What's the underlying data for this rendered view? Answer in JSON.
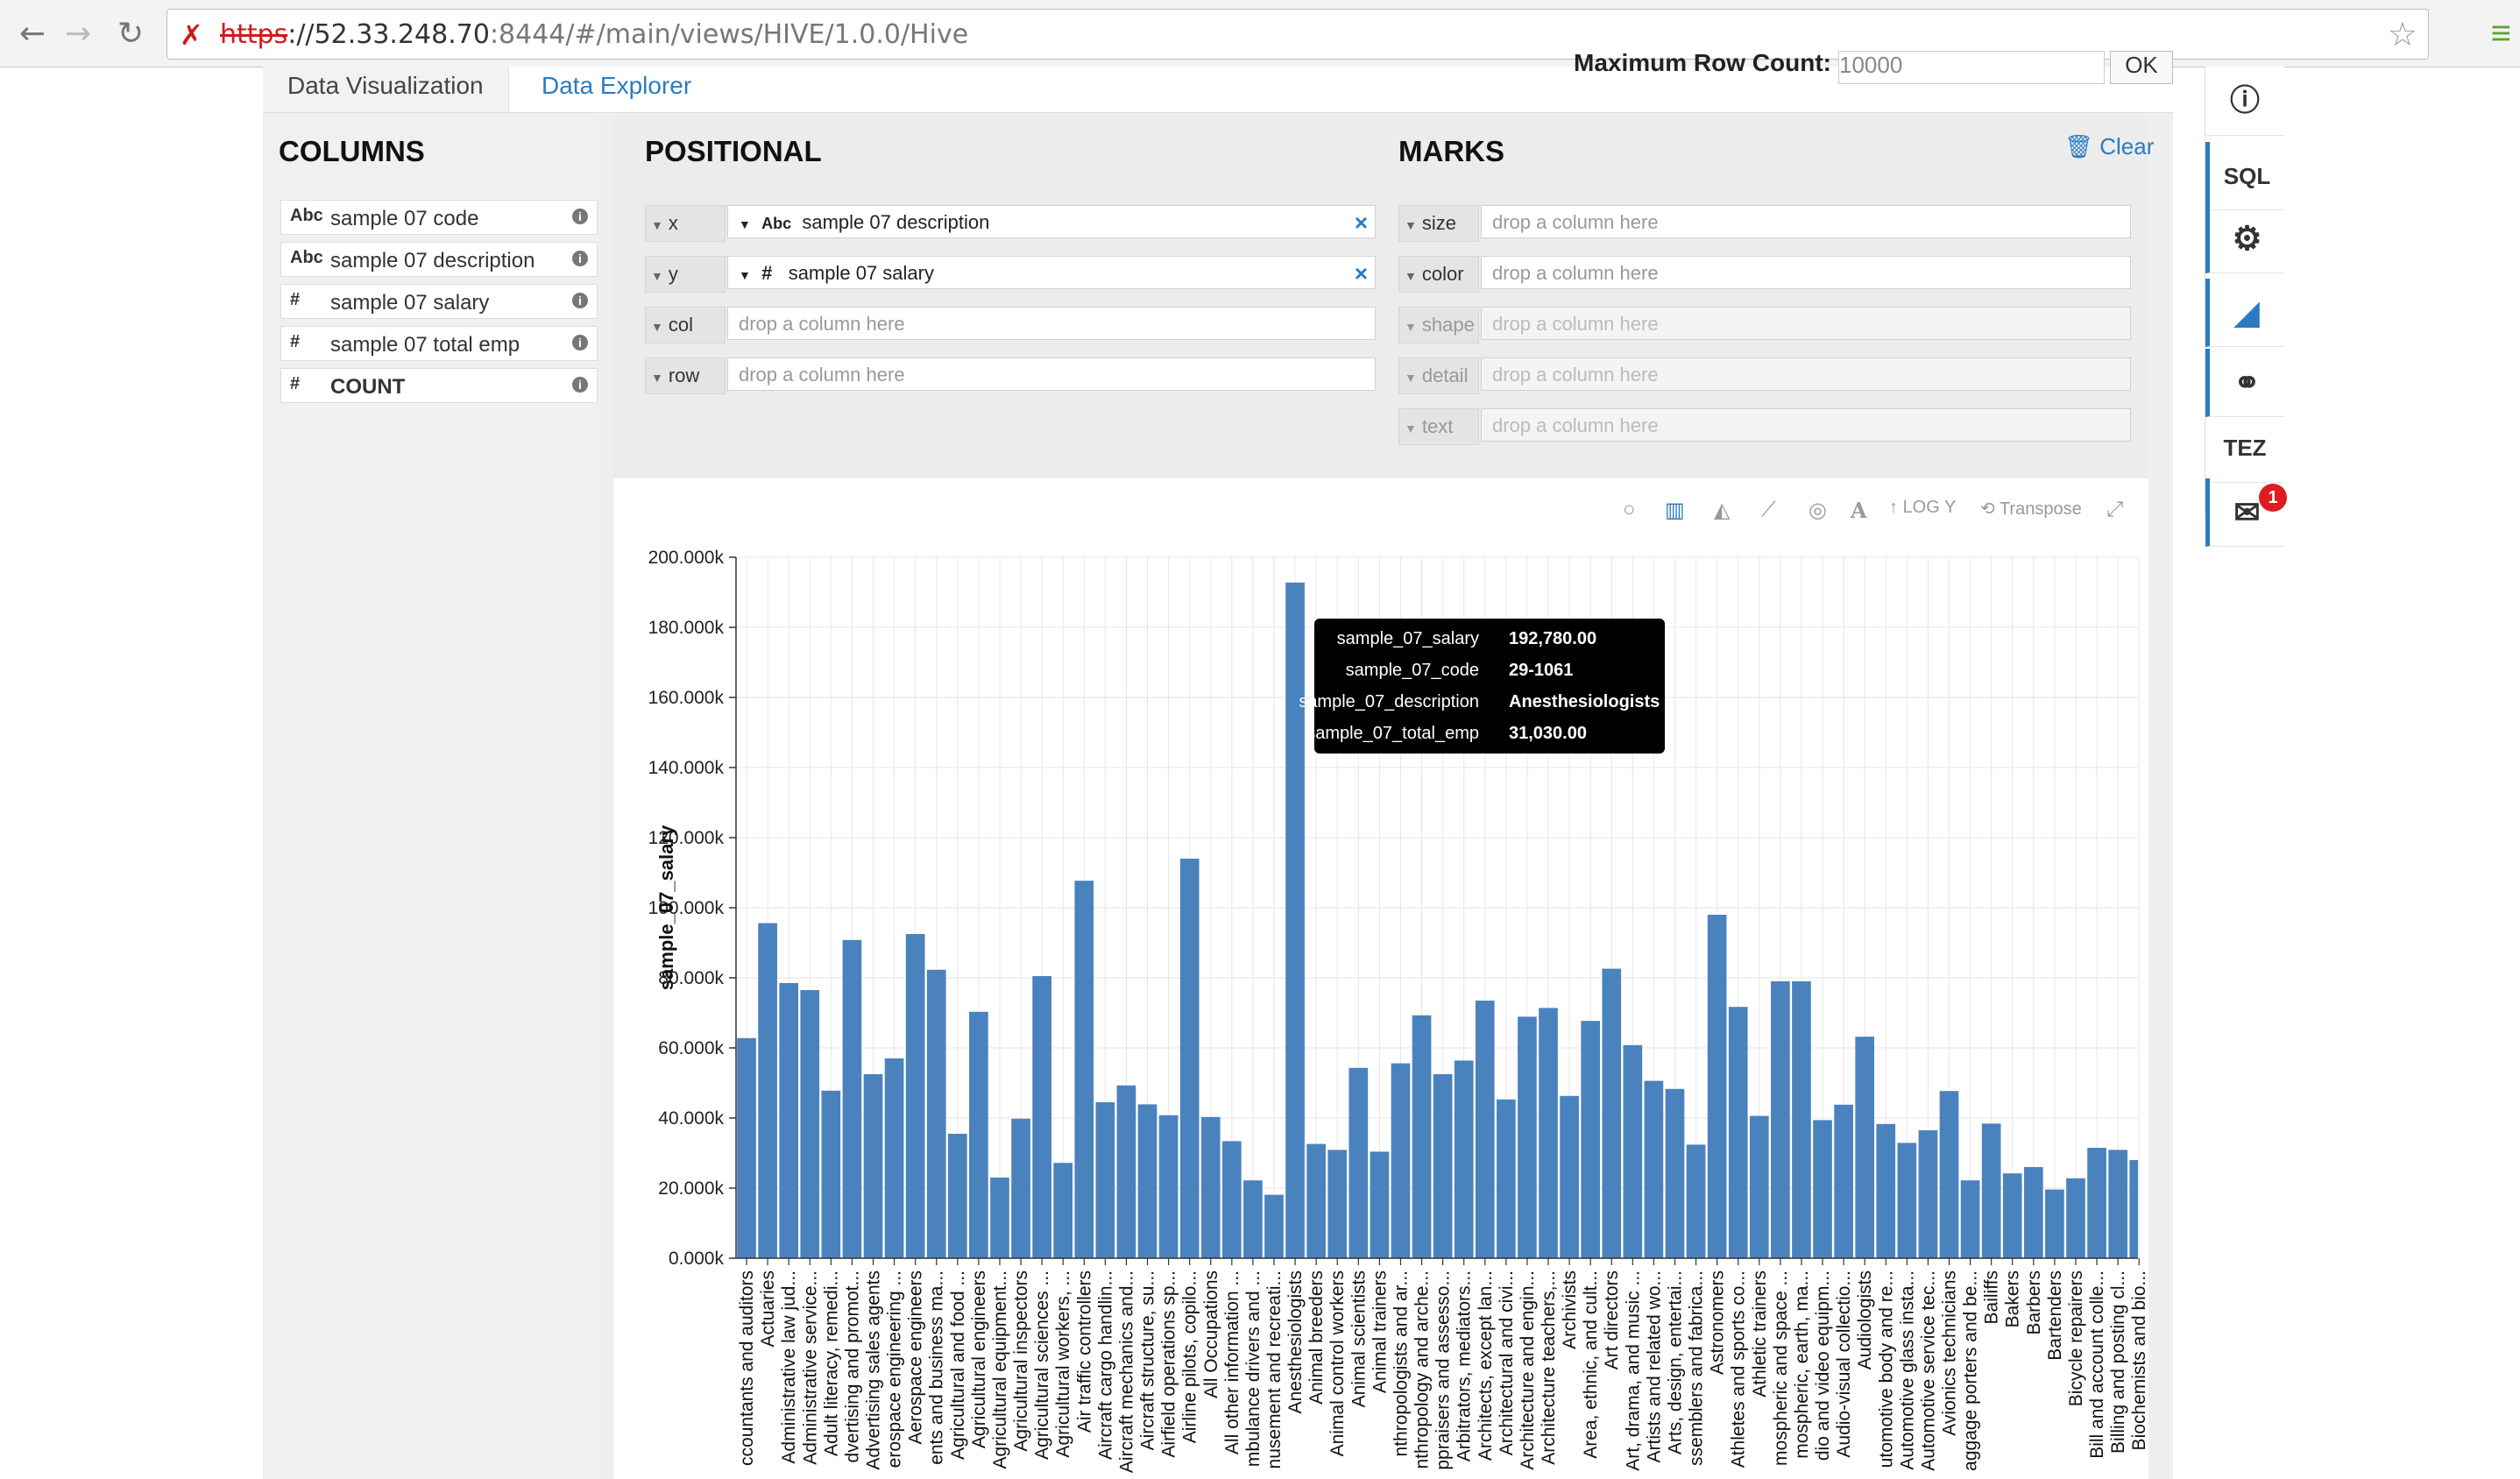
{
  "browser": {
    "url_scheme": "https",
    "url_host": "://52.33.248.70",
    "url_rest": ":8444/#/main/views/HIVE/1.0.0/Hive"
  },
  "tabs": [
    {
      "label": "Data Visualization"
    },
    {
      "label": "Data Explorer"
    }
  ],
  "max_row": {
    "label": "Maximum Row Count:",
    "value": "10000",
    "ok": "OK"
  },
  "columns": {
    "title": "COLUMNS",
    "items": [
      {
        "type": "Abc",
        "label": "sample 07 code"
      },
      {
        "type": "Abc",
        "label": "sample 07 description"
      },
      {
        "type": "#",
        "label": "sample 07 salary"
      },
      {
        "type": "#",
        "label": "sample 07 total emp"
      },
      {
        "type": "#",
        "label": "COUNT"
      }
    ]
  },
  "positional": {
    "title": "POSITIONAL",
    "x_label": "x",
    "x_type": "Abc",
    "x_value": "sample 07 description",
    "y_label": "y",
    "y_type": "#",
    "y_value": "sample 07 salary",
    "col_label": "col",
    "row_label": "row",
    "placeholder": "drop a column here"
  },
  "marks": {
    "title": "MARKS",
    "clear": "Clear",
    "size": "size",
    "color": "color",
    "shape": "shape",
    "detail": "detail",
    "text": "text",
    "placeholder": "drop a column here"
  },
  "toolbar": {
    "log_y": "LOG Y",
    "transpose": "Transpose"
  },
  "rightbar": {
    "sql": "SQL",
    "tez": "TEZ",
    "badge": "1"
  },
  "tooltip": [
    {
      "k": "sample_07_salary",
      "v": "192,780.00"
    },
    {
      "k": "sample_07_code",
      "v": "29-1061"
    },
    {
      "k": "sample_07_description",
      "v": "Anesthesiologists"
    },
    {
      "k": "sample_07_total_emp",
      "v": "31,030.00"
    }
  ],
  "chart_data": {
    "type": "bar",
    "ylabel": "sample_07_salary",
    "ylim": [
      0,
      200000
    ],
    "yticks": [
      "0.000k",
      "20.000k",
      "40.000k",
      "60.000k",
      "80.000k",
      "100.000k",
      "120.000k",
      "140.000k",
      "160.000k",
      "180.000k",
      "200.000k"
    ],
    "color": "#4a82be",
    "categories": [
      "ccountants and auditors",
      "Actuaries",
      "Administrative law jud...",
      "Administrative service...",
      "Adult literacy, remedi...",
      "dvertising and promot...",
      "Advertising sales agents",
      "erospace engineering ...",
      "Aerospace engineers",
      "ents and business ma...",
      "Agricultural and food ...",
      "Agricultural engineers",
      "Agricultural equipment...",
      "Agricultural inspectors",
      "Agricultural sciences ...",
      "Agricultural workers, ...",
      "Air traffic controllers",
      "Aircraft cargo handlin...",
      "Aircraft mechanics and...",
      "Aircraft structure, su...",
      "Airfield operations sp...",
      "Airline pilots, copilo...",
      "All Occupations",
      "All other information ...",
      "mbulance drivers and ...",
      "nusement and recreati...",
      "Anesthesiologists",
      "Animal breeders",
      "Animal control workers",
      "Animal scientists",
      "Animal trainers",
      "nthropologists and ar...",
      "nthropology and arche...",
      "ppraisers and assesso...",
      "Arbitrators, mediators...",
      "Architects, except lan...",
      "Architectural and civi...",
      "Architecture and engin...",
      "Architecture teachers,...",
      "Archivists",
      "Area, ethnic, and cult...",
      "Art directors",
      "Art, drama, and music ...",
      "Artists and related wo...",
      "Arts, design, entertai...",
      "ssemblers and fabrica...",
      "Astronomers",
      "Athletes and sports co...",
      "Athletic trainers",
      "mospheric and space ...",
      "mospheric, earth, ma...",
      "dio and video equipm...",
      "Audio-visual collectio...",
      "Audiologists",
      "utomotive body and re...",
      "Automotive glass insta...",
      "Automotive service tec...",
      "Avionics technicians",
      "aggage porters and be...",
      "Bailiffs",
      "Bakers",
      "Barbers",
      "Bartenders",
      "Bicycle repairers",
      "Bill and account colle...",
      "Billing and posting cl...",
      "Biochemists and bio..."
    ],
    "values": [
      62800,
      95600,
      78500,
      76500,
      47800,
      90800,
      52500,
      57000,
      92500,
      82300,
      35500,
      70300,
      23000,
      39800,
      80500,
      27200,
      107700,
      44500,
      49300,
      43900,
      40800,
      114000,
      40300,
      33400,
      22200,
      18100,
      192780,
      32600,
      30900,
      54300,
      30400,
      55600,
      69300,
      52500,
      56400,
      73500,
      45300,
      68900,
      71400,
      46300,
      67700,
      82600,
      60800,
      50600,
      48300,
      32400,
      98000,
      71700,
      40600,
      79000,
      79000,
      39400,
      43800,
      63200,
      38300,
      32900,
      36500,
      47700,
      22200,
      38400,
      24200,
      26000,
      19600,
      22800,
      31500,
      30900,
      28000
    ]
  }
}
